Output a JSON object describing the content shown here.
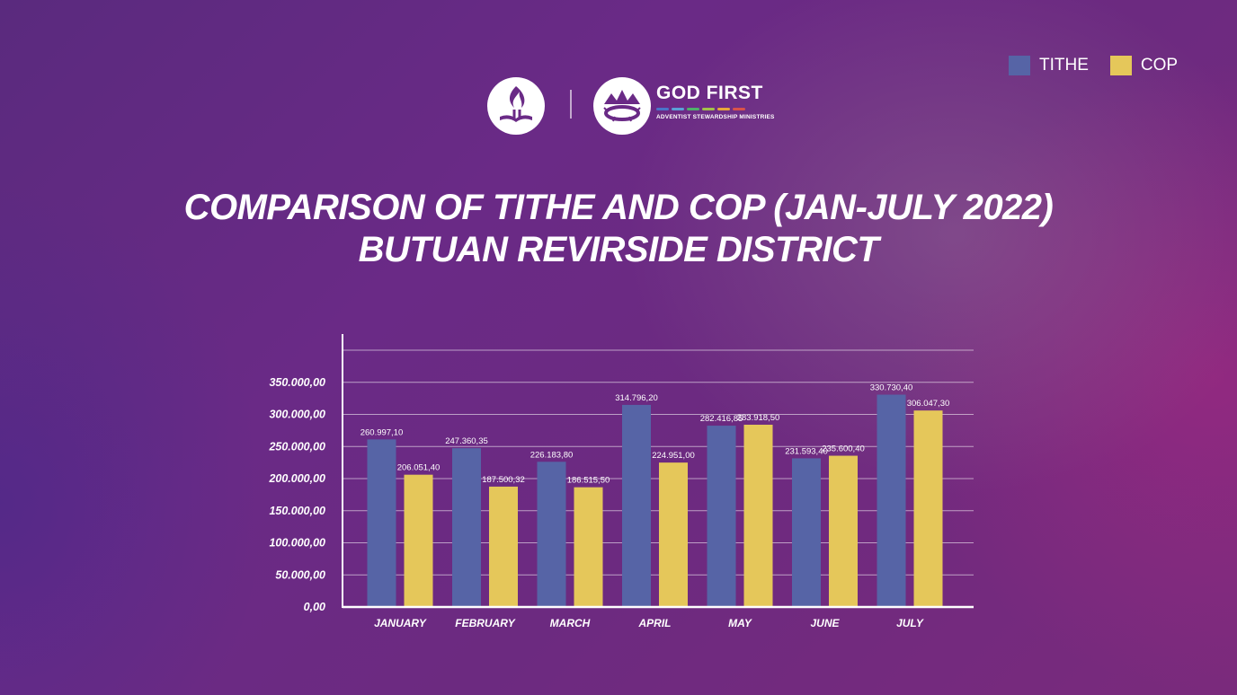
{
  "legend": [
    {
      "label": "TITHE",
      "color": "#5664a6"
    },
    {
      "label": "COP",
      "color": "#e5c75a"
    }
  ],
  "logos": {
    "church_logo_icon": "adventist-flame-book-icon",
    "ministry_logo_icon": "crown-of-thorns-icon",
    "ministry_name": "GOD FIRST",
    "ministry_subtitle": "ADVENTIST STEWARDSHIP MINISTRIES"
  },
  "chart_data": {
    "type": "bar",
    "title": "COMPARISON OF TITHE AND COP (JAN-JULY 2022)",
    "subtitle": "BUTUAN REVIRSIDE DISTRICT",
    "categories": [
      "JANUARY",
      "FEBRUARY",
      "MARCH",
      "APRIL",
      "MAY",
      "JUNE",
      "JULY"
    ],
    "series": [
      {
        "name": "TITHE",
        "color": "#5664a6",
        "values": [
          260997.1,
          247360.35,
          226183.8,
          314796.2,
          282416.85,
          231593.4,
          330730.4
        ],
        "labels": [
          "260.997,10",
          "247.360,35",
          "226.183,80",
          "314.796,20",
          "282.416,85",
          "231.593,40",
          "330.730,40"
        ]
      },
      {
        "name": "COP",
        "color": "#e5c75a",
        "values": [
          206051.4,
          187500.32,
          186515.5,
          224951.0,
          283918.5,
          235600.4,
          306047.3
        ],
        "labels": [
          "206.051,40",
          "187.500,32",
          "186.515,50",
          "224.951,00",
          "283.918,50",
          "235.600,40",
          "306.047,30"
        ]
      }
    ],
    "yticks": [
      "0,00",
      "50.000,00",
      "100.000,00",
      "150.000,00",
      "200.000,00",
      "250.000,00",
      "300.000,00",
      "350.000,00"
    ],
    "ytick_values": [
      0,
      50000,
      100000,
      150000,
      200000,
      250000,
      300000,
      350000
    ],
    "ylim": [
      0,
      400000
    ],
    "grid": true,
    "legend_position": "top-right"
  }
}
